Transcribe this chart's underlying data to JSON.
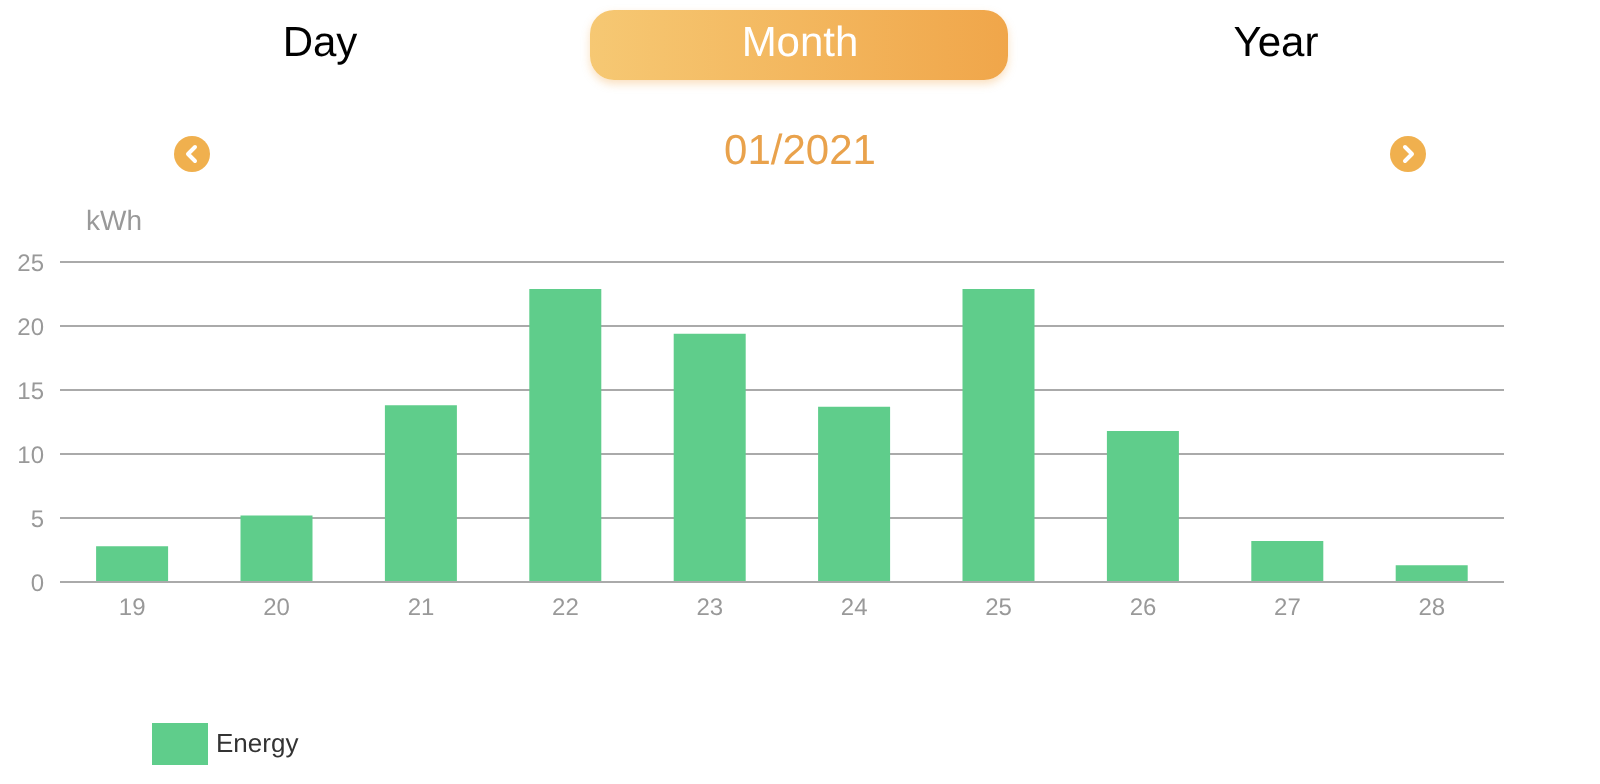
{
  "chart_data": {
    "type": "bar",
    "title": "01/2021",
    "annotations": [
      "Day",
      "Month",
      "Year"
    ],
    "ylabel": "kWh",
    "categories": [
      "19",
      "20",
      "21",
      "22",
      "23",
      "24",
      "25",
      "26",
      "27",
      "28"
    ],
    "series": [
      {
        "name": "Energy",
        "color": "#5fcd8b",
        "values": [
          2.8,
          5.2,
          13.8,
          22.9,
          19.4,
          13.7,
          22.9,
          11.8,
          3.2,
          1.3
        ]
      }
    ],
    "ylim": [
      0,
      25
    ],
    "yticks": [
      0,
      5,
      10,
      15,
      20,
      25
    ],
    "grid": "y",
    "legend": "bottom left"
  }
}
